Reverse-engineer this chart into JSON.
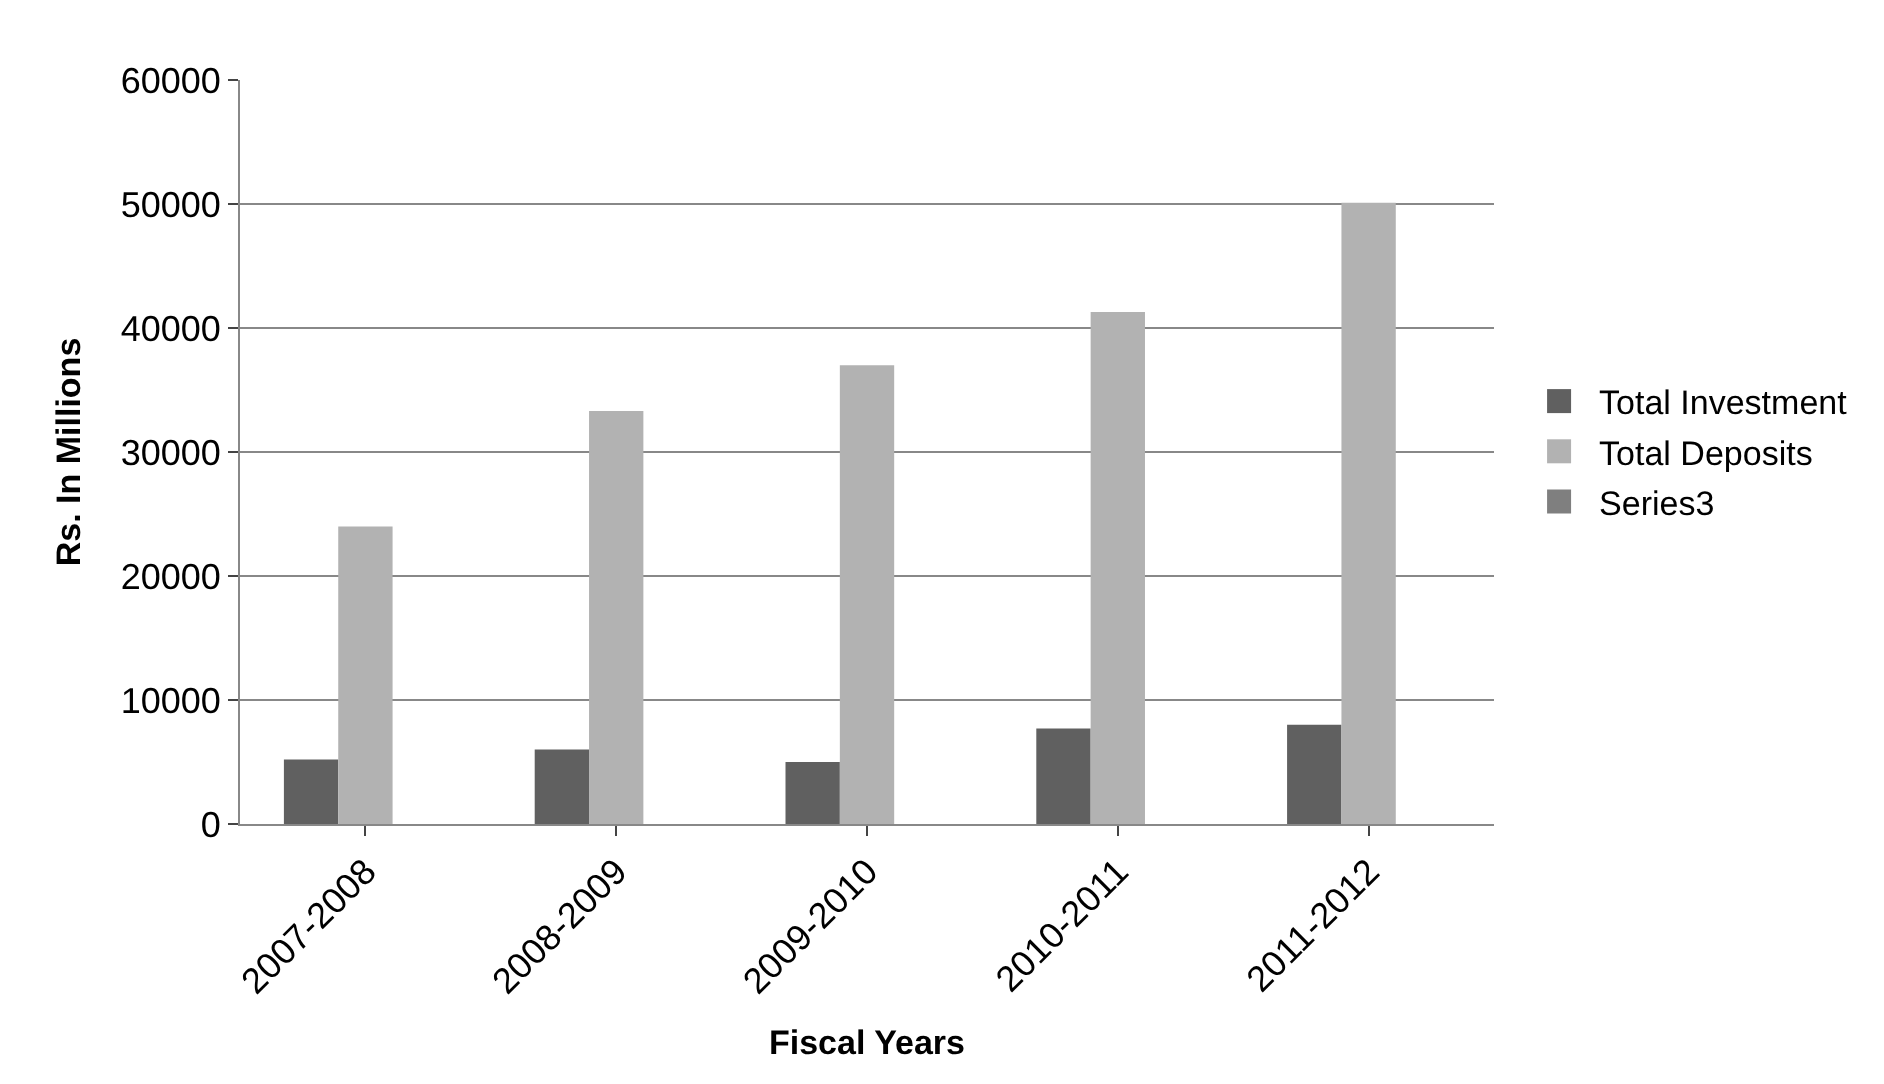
{
  "chart_data": {
    "type": "bar",
    "xlabel": "Fiscal Years",
    "ylabel": "Rs. In Millions",
    "categories": [
      "2007-2008",
      "2008-2009",
      "2009-2010",
      "2010-2011",
      "2011-2012"
    ],
    "series": [
      {
        "name": "Total Investment",
        "color": "#606060",
        "values": [
          5200,
          6000,
          5000,
          7700,
          8000
        ]
      },
      {
        "name": "Total Deposits",
        "color": "#b2b2b2",
        "values": [
          24000,
          33300,
          37000,
          41300,
          50100
        ]
      },
      {
        "name": "Series3",
        "color": "#7f7f7f",
        "values": [
          0,
          0,
          0,
          0,
          0
        ]
      }
    ],
    "ylim": [
      0,
      60000
    ],
    "yticks": [
      0,
      10000,
      20000,
      30000,
      40000,
      50000,
      60000
    ],
    "grid": "y",
    "legend": "right"
  }
}
